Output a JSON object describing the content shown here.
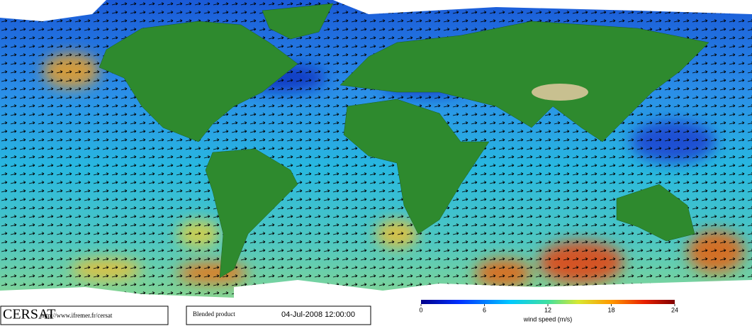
{
  "logo": "CERSAT",
  "url": "http://www.ifremer.fr/cersat",
  "product": "Blended product",
  "date": "04-Jul-2008 12:00:00",
  "colorbar": {
    "label": "wind speed (m/s)",
    "lim": [
      0,
      24
    ],
    "ticks": [
      0,
      6,
      12,
      18,
      24
    ]
  }
}
